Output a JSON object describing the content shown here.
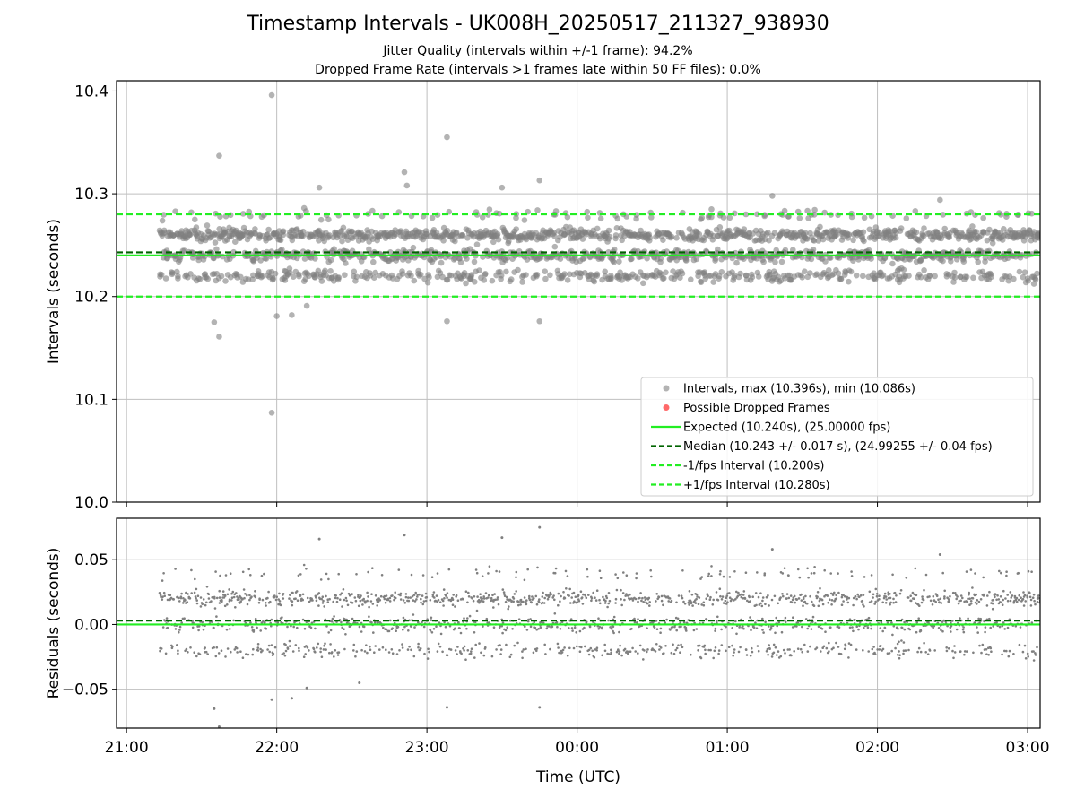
{
  "figure": {
    "title": "Timestamp Intervals - UK008H_20250517_211327_938930",
    "subtitle_1": "Jitter Quality (intervals within +/-1 frame): 94.2%",
    "subtitle_2": "Dropped Frame Rate (intervals >1 frames late within 50 FF files): 0.0%"
  },
  "colors": {
    "points": "#808080",
    "dropped": "#ff4444",
    "expected": "#22ee22",
    "median": "#006400",
    "interval": "#22ee22",
    "grid": "#bfbfbf"
  },
  "chart_data": [
    {
      "type": "scatter",
      "panel": "intervals",
      "ylabel": "Intervals (seconds)",
      "xlabel": "",
      "ylim": [
        10.0,
        10.41
      ],
      "yticks": [
        "10.0",
        "10.1",
        "10.2",
        "10.3",
        "10.4"
      ],
      "ytick_values": [
        10.0,
        10.1,
        10.2,
        10.3,
        10.4
      ],
      "grid": true,
      "legend_position": "lower-right",
      "legend": [
        "Intervals, max (10.396s), min (10.086s)",
        "Possible Dropped Frames",
        "Expected (10.240s), (25.00000 fps)",
        "Median (10.243 +/- 0.017 s), (24.99255 +/- 0.04 fps)",
        "-1/fps Interval (10.200s)",
        "+1/fps Interval (10.280s)"
      ],
      "series": [
        {
          "name": "Intervals, max (10.396s), min (10.086s)",
          "summary": {
            "max": 10.396,
            "min": 10.086,
            "count": 2070,
            "core_band": [
              10.215,
              10.285
            ]
          },
          "outliers": [
            {
              "x": "21:58",
              "y": 10.396
            },
            {
              "x": "21:37",
              "y": 10.337
            },
            {
              "x": "23:08",
              "y": 10.355
            },
            {
              "x": "22:51",
              "y": 10.321
            },
            {
              "x": "22:52",
              "y": 10.308
            },
            {
              "x": "23:30",
              "y": 10.306
            },
            {
              "x": "23:45",
              "y": 10.313
            },
            {
              "x": "22:17",
              "y": 10.306
            },
            {
              "x": "01:18",
              "y": 10.298
            },
            {
              "x": "02:25",
              "y": 10.294
            },
            {
              "x": "21:58",
              "y": 10.087
            },
            {
              "x": "21:37",
              "y": 10.161
            },
            {
              "x": "21:35",
              "y": 10.175
            },
            {
              "x": "23:08",
              "y": 10.176
            },
            {
              "x": "23:45",
              "y": 10.176
            },
            {
              "x": "22:00",
              "y": 10.181
            },
            {
              "x": "22:06",
              "y": 10.182
            },
            {
              "x": "22:12",
              "y": 10.191
            }
          ]
        },
        {
          "name": "Possible Dropped Frames",
          "values": []
        }
      ],
      "reference_lines": [
        {
          "name": "Expected (10.240s), (25.00000 fps)",
          "y": 10.24,
          "style": "solid"
        },
        {
          "name": "Median (10.243 +/- 0.017 s), (24.99255 +/- 0.04 fps)",
          "y": 10.243,
          "style": "dashed"
        },
        {
          "name": "-1/fps Interval (10.200s)",
          "y": 10.2,
          "style": "dashed"
        },
        {
          "name": "+1/fps Interval (10.280s)",
          "y": 10.28,
          "style": "dashed"
        }
      ],
      "x_range": [
        "20:56",
        "03:05"
      ],
      "data_start": "21:13",
      "data_end": "03:05"
    },
    {
      "type": "scatter",
      "panel": "residuals",
      "ylabel": "Residuals (seconds)",
      "xlabel": "Time (UTC)",
      "ylim": [
        -0.08,
        0.082
      ],
      "yticks": [
        "−0.05",
        "0.00",
        "0.05"
      ],
      "ytick_values": [
        -0.05,
        0.0,
        0.05
      ],
      "xticks": [
        "21:00",
        "22:00",
        "23:00",
        "00:00",
        "01:00",
        "02:00",
        "03:00"
      ],
      "grid": true,
      "series": [
        {
          "name": "",
          "summary": {
            "count": 2070,
            "core_band": [
              -0.03,
              0.045
            ]
          },
          "outliers": [
            {
              "x": "23:45",
              "y": 0.075
            },
            {
              "x": "22:51",
              "y": 0.069
            },
            {
              "x": "23:30",
              "y": 0.067
            },
            {
              "x": "22:17",
              "y": 0.066
            },
            {
              "x": "21:58",
              "y": -0.058
            },
            {
              "x": "22:06",
              "y": -0.057
            },
            {
              "x": "22:12",
              "y": -0.049
            },
            {
              "x": "22:33",
              "y": -0.045
            },
            {
              "x": "21:35",
              "y": -0.065
            },
            {
              "x": "21:37",
              "y": -0.079
            },
            {
              "x": "23:08",
              "y": -0.064
            },
            {
              "x": "23:45",
              "y": -0.064
            },
            {
              "x": "01:18",
              "y": 0.058
            },
            {
              "x": "02:25",
              "y": 0.054
            }
          ]
        }
      ],
      "reference_lines": [
        {
          "name": "expected",
          "y": 0.0,
          "style": "solid"
        },
        {
          "name": "median",
          "y": 0.003,
          "style": "dashed"
        }
      ]
    }
  ]
}
